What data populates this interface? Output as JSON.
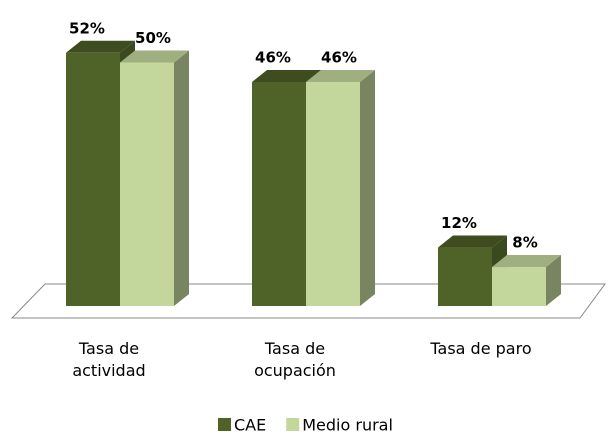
{
  "chart_data": {
    "type": "bar",
    "categories": [
      "Tasa de actividad",
      "Tasa de ocupación",
      "Tasa de paro"
    ],
    "series": [
      {
        "name": "CAE",
        "color": "#4f6228",
        "values": [
          52,
          46,
          12
        ],
        "value_labels": [
          "52%",
          "46%",
          "12%"
        ]
      },
      {
        "name": "Medio rural",
        "color": "#c3d69b",
        "values": [
          50,
          46,
          8
        ],
        "value_labels": [
          "50%",
          "46%",
          "8%"
        ]
      }
    ],
    "legend": "bottom"
  }
}
